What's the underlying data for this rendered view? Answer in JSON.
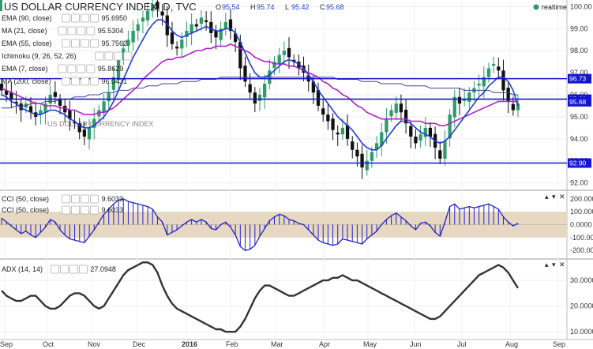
{
  "header": {
    "title": "US DOLLAR CURRENCY INDEX, D, TVC",
    "ohlc": [
      {
        "k": "O",
        "v": "95.54"
      },
      {
        "k": "H",
        "v": "95.74"
      },
      {
        "k": "L",
        "v": "95.42"
      },
      {
        "k": "C",
        "v": "95.68"
      }
    ],
    "realtime": "realtime",
    "watermark": "US DOLLAR CURRENCY INDEX"
  },
  "indicators": [
    {
      "name": "EMA (90, close)",
      "value": "95.6950",
      "color": "#9c27b0"
    },
    {
      "name": "MA (21, close)",
      "value": "95.5304",
      "color": "#1f3bd8"
    },
    {
      "name": "EMA (55, close)",
      "value": "95.7562",
      "color": "#7a7aa0"
    },
    {
      "name": "Ichimoku (9, 26, 52, 26)",
      "value": "",
      "color": "#999999"
    },
    {
      "name": "EMA (7, close)",
      "value": "95.8629",
      "color": "#6b3fa0"
    },
    {
      "name": "MA (200, close)",
      "value": "96.0431",
      "color": "#333399"
    }
  ],
  "cci_labels": [
    {
      "name": "CCI (50, close)",
      "value": "9.6033"
    },
    {
      "name": "CCI (50, close)",
      "value": "9.6033"
    }
  ],
  "adx_label": {
    "name": "ADX (14, 14)",
    "value": "27.0948"
  },
  "colors": {
    "up": "#2e9b6a",
    "down": "#111111",
    "level": "#1515d0",
    "tag": "#1515d0",
    "ma21": "#1f3bd8",
    "ema90": "#b022c8",
    "ma200": "#40409a",
    "ema55": "#8a8ab8",
    "cci_band": "#e6d8c2",
    "cci_line": "#2323c8",
    "adx": "#333333"
  },
  "chart_data": {
    "type": "candlestick",
    "title": "US DOLLAR CURRENCY INDEX, D, TVC",
    "y_axis_ticks": [
      "92.00",
      "93.00",
      "94.00",
      "95.00",
      "96.00",
      "97.00",
      "98.00",
      "99.00",
      "100.00"
    ],
    "ylim": [
      91.7,
      100.3
    ],
    "x_axis_ticks": [
      "Sep",
      "Oct",
      "Nov",
      "Dec",
      "2016",
      "Feb",
      "Mar",
      "Apr",
      "May",
      "Jun",
      "Jul",
      "Aug",
      "Sep"
    ],
    "horizontal_levels": [
      "96.73",
      "95.80",
      "95.68",
      "92.90"
    ],
    "price_series": [
      96.2,
      96.0,
      95.8,
      95.6,
      95.3,
      95.6,
      95.2,
      95.0,
      95.3,
      95.6,
      96.0,
      95.9,
      95.5,
      95.2,
      94.9,
      94.7,
      94.3,
      94.1,
      94.5,
      94.9,
      95.3,
      95.7,
      96.1,
      96.8,
      97.6,
      98.1,
      98.5,
      98.9,
      99.2,
      99.5,
      99.8,
      100.1,
      99.9,
      99.6,
      98.7,
      98.3,
      98.1,
      98.5,
      98.9,
      99.2,
      99.1,
      99.5,
      99.3,
      98.8,
      98.6,
      99.0,
      99.3,
      98.9,
      98.4,
      97.2,
      96.6,
      96.1,
      95.6,
      96.0,
      96.5,
      97.1,
      97.5,
      97.8,
      98.0,
      97.7,
      97.5,
      97.2,
      97.0,
      96.6,
      96.1,
      95.5,
      95.1,
      94.8,
      94.4,
      94.2,
      94.5,
      94.0,
      93.5,
      93.2,
      92.7,
      93.0,
      93.4,
      93.8,
      94.3,
      94.9,
      95.3,
      95.6,
      95.2,
      94.7,
      94.1,
      93.8,
      94.2,
      94.5,
      94.1,
      93.6,
      93.1,
      93.9,
      95.1,
      95.9,
      95.6,
      95.8,
      96.1,
      96.3,
      96.5,
      96.8,
      97.2,
      97.4,
      97.1,
      96.2,
      95.7,
      95.3,
      95.6
    ],
    "ma21_series": [
      96.0,
      95.9,
      95.7,
      95.6,
      95.4,
      95.3,
      95.2,
      95.1,
      95.1,
      95.2,
      95.3,
      95.3,
      95.2,
      95.1,
      94.9,
      94.8,
      94.6,
      94.5,
      94.5,
      94.6,
      94.8,
      95.0,
      95.3,
      95.7,
      96.2,
      96.7,
      97.2,
      97.7,
      98.1,
      98.5,
      98.9,
      99.2,
      99.4,
      99.4,
      99.2,
      98.9,
      98.7,
      98.6,
      98.7,
      98.8,
      98.9,
      99.0,
      99.1,
      99.0,
      98.9,
      98.9,
      99.0,
      99.0,
      98.8,
      98.4,
      97.9,
      97.4,
      97.0,
      96.8,
      96.8,
      96.9,
      97.1,
      97.3,
      97.5,
      97.6,
      97.5,
      97.4,
      97.2,
      96.9,
      96.6,
      96.2,
      95.9,
      95.6,
      95.3,
      95.0,
      94.8,
      94.6,
      94.4,
      94.1,
      93.8,
      93.6,
      93.5,
      93.5,
      93.7,
      94.0,
      94.3,
      94.6,
      94.8,
      94.8,
      94.7,
      94.5,
      94.3,
      94.2,
      94.1,
      93.9,
      93.8,
      93.9,
      94.1,
      94.4,
      94.7,
      95.0,
      95.3,
      95.6,
      95.9,
      96.1,
      96.4,
      96.6,
      96.8,
      96.8,
      96.6,
      96.2,
      95.5
    ],
    "ema90_series": [
      96.3,
      96.2,
      96.1,
      96.0,
      95.9,
      95.8,
      95.7,
      95.6,
      95.6,
      95.5,
      95.5,
      95.5,
      95.4,
      95.4,
      95.3,
      95.3,
      95.2,
      95.1,
      95.1,
      95.1,
      95.2,
      95.2,
      95.3,
      95.4,
      95.6,
      95.8,
      96.0,
      96.2,
      96.4,
      96.7,
      96.9,
      97.1,
      97.3,
      97.5,
      97.6,
      97.6,
      97.7,
      97.7,
      97.8,
      97.9,
      98.0,
      98.0,
      98.1,
      98.1,
      98.2,
      98.2,
      98.2,
      98.3,
      98.2,
      98.1,
      98.0,
      97.9,
      97.7,
      97.6,
      97.5,
      97.5,
      97.4,
      97.4,
      97.4,
      97.3,
      97.3,
      97.2,
      97.1,
      97.0,
      96.9,
      96.8,
      96.6,
      96.5,
      96.3,
      96.2,
      96.0,
      95.9,
      95.7,
      95.5,
      95.4,
      95.2,
      95.1,
      95.0,
      94.9,
      94.9,
      94.9,
      94.9,
      94.9,
      94.9,
      94.8,
      94.8,
      94.8,
      94.7,
      94.7,
      94.7,
      94.6,
      94.6,
      94.7,
      94.8,
      94.9,
      95.0,
      95.1,
      95.2,
      95.3,
      95.4,
      95.5,
      95.6,
      95.7,
      95.7,
      95.7,
      95.7,
      95.7
    ],
    "ma200_series": [
      95.4,
      95.4,
      95.4,
      95.5,
      95.5,
      95.5,
      95.6,
      95.6,
      95.6,
      95.7,
      95.7,
      95.7,
      95.8,
      95.8,
      95.8,
      95.9,
      95.9,
      95.9,
      96.0,
      96.0,
      96.0,
      96.1,
      96.1,
      96.1,
      96.2,
      96.2,
      96.2,
      96.3,
      96.3,
      96.3,
      96.4,
      96.4,
      96.4,
      96.5,
      96.5,
      96.5,
      96.5,
      96.6,
      96.6,
      96.6,
      96.6,
      96.7,
      96.7,
      96.7,
      96.7,
      96.8,
      96.8,
      96.8,
      96.8,
      96.8,
      96.8,
      96.8,
      96.8,
      96.8,
      96.8,
      96.8,
      96.8,
      96.8,
      96.8,
      96.8,
      96.8,
      96.8,
      96.8,
      96.8,
      96.8,
      96.8,
      96.8,
      96.8,
      96.8,
      96.7,
      96.7,
      96.7,
      96.7,
      96.7,
      96.6,
      96.6,
      96.6,
      96.6,
      96.5,
      96.5,
      96.5,
      96.5,
      96.5,
      96.4,
      96.4,
      96.4,
      96.4,
      96.4,
      96.3,
      96.3,
      96.3,
      96.3,
      96.3,
      96.3,
      96.3,
      96.2,
      96.2,
      96.2,
      96.2,
      96.2,
      96.2,
      96.1,
      96.1,
      96.1,
      96.1,
      96.0,
      96.0
    ],
    "cci_axis_ticks": [
      "200.0000",
      "100.0000",
      "0.0000",
      "-100.0000",
      "-200.0000"
    ],
    "cci_band": [
      -100,
      100
    ],
    "cci_ylim": [
      -260,
      260
    ],
    "cci_series": [
      50,
      20,
      -10,
      -40,
      -70,
      -50,
      -80,
      -100,
      -60,
      -20,
      40,
      20,
      -40,
      -80,
      -110,
      -120,
      -130,
      -140,
      -90,
      -40,
      20,
      80,
      120,
      160,
      190,
      200,
      180,
      170,
      160,
      150,
      140,
      120,
      60,
      20,
      -80,
      -60,
      -40,
      -10,
      20,
      40,
      20,
      40,
      20,
      -30,
      -40,
      0,
      20,
      -20,
      -80,
      -170,
      -200,
      -190,
      -160,
      -90,
      -30,
      30,
      60,
      80,
      70,
      40,
      30,
      10,
      0,
      -40,
      -80,
      -120,
      -140,
      -150,
      -160,
      -150,
      -110,
      -120,
      -130,
      -140,
      -150,
      -110,
      -80,
      -50,
      0,
      40,
      70,
      90,
      60,
      30,
      -10,
      -40,
      10,
      20,
      -10,
      -60,
      -90,
      20,
      140,
      160,
      120,
      130,
      140,
      130,
      140,
      150,
      160,
      140,
      120,
      60,
      20,
      -10,
      10
    ],
    "adx_axis_ticks": [
      "30.0000",
      "20.0000",
      "10.0000"
    ],
    "adx_ylim": [
      7,
      38
    ],
    "adx_series": [
      26,
      24,
      23,
      22,
      22,
      23,
      24,
      24,
      22,
      20,
      19,
      19,
      20,
      22,
      24,
      25,
      25,
      24,
      22,
      20,
      19,
      20,
      23,
      26,
      29,
      32,
      34,
      35,
      36,
      37,
      37,
      36,
      33,
      28,
      24,
      21,
      19,
      18,
      17,
      16,
      15,
      14,
      13,
      12,
      11,
      11,
      10,
      10,
      10,
      12,
      15,
      19,
      23,
      26,
      28,
      28,
      27,
      26,
      25,
      24,
      24,
      25,
      26,
      27,
      28,
      29,
      30,
      30,
      31,
      31,
      32,
      31,
      30,
      30,
      29,
      28,
      27,
      26,
      25,
      24,
      23,
      22,
      21,
      20,
      19,
      18,
      17,
      16,
      15,
      15,
      16,
      18,
      20,
      22,
      24,
      26,
      28,
      30,
      32,
      33,
      34,
      35,
      36,
      35,
      33,
      30,
      27
    ]
  }
}
